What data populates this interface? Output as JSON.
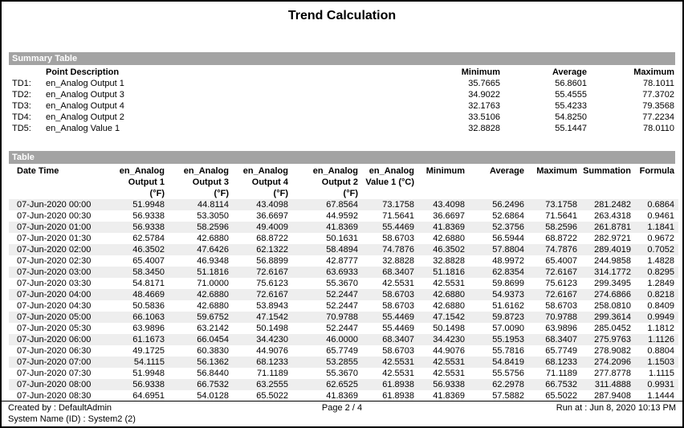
{
  "title": "Trend Calculation",
  "summary": {
    "section_label": "Summary Table",
    "headers": [
      "",
      "Point Description",
      "Minimum",
      "Average",
      "Maximum"
    ],
    "rows": [
      [
        "TD1:",
        "en_Analog Output 1",
        "35.7665",
        "56.8601",
        "78.1011"
      ],
      [
        "TD2:",
        "en_Analog Output 3",
        "34.9022",
        "55.4555",
        "77.3702"
      ],
      [
        "TD3:",
        "en_Analog Output 4",
        "32.1763",
        "55.4233",
        "79.3568"
      ],
      [
        "TD4:",
        "en_Analog Output 2",
        "33.5106",
        "54.8250",
        "77.2234"
      ],
      [
        "TD5:",
        "en_Analog Value 1",
        "32.8828",
        "55.1447",
        "78.0110"
      ]
    ]
  },
  "table": {
    "section_label": "Table",
    "headers": [
      "Date Time",
      "en_Analog\nOutput 1\n(°F)",
      "en_Analog\nOutput 3\n(°F)",
      "en_Analog\nOutput 4\n(°F)",
      "en_Analog\nOutput 2\n(°F)",
      "en_Analog\nValue 1 (°C)",
      "Minimum",
      "Average",
      "Maximum",
      "Summation",
      "Formula"
    ],
    "rows": [
      [
        "07-Jun-2020 00:00",
        "51.9948",
        "44.8114",
        "43.4098",
        "67.8564",
        "73.1758",
        "43.4098",
        "56.2496",
        "73.1758",
        "281.2482",
        "0.6864"
      ],
      [
        "07-Jun-2020 00:30",
        "56.9338",
        "53.3050",
        "36.6697",
        "44.9592",
        "71.5641",
        "36.6697",
        "52.6864",
        "71.5641",
        "263.4318",
        "0.9461"
      ],
      [
        "07-Jun-2020 01:00",
        "56.9338",
        "58.2596",
        "49.4009",
        "41.8369",
        "55.4469",
        "41.8369",
        "52.3756",
        "58.2596",
        "261.8781",
        "1.1841"
      ],
      [
        "07-Jun-2020 01:30",
        "62.5784",
        "42.6880",
        "68.8722",
        "50.1631",
        "58.6703",
        "42.6880",
        "56.5944",
        "68.8722",
        "282.9721",
        "0.9672"
      ],
      [
        "07-Jun-2020 02:00",
        "46.3502",
        "47.6426",
        "62.1322",
        "58.4894",
        "74.7876",
        "46.3502",
        "57.8804",
        "74.7876",
        "289.4019",
        "0.7052"
      ],
      [
        "07-Jun-2020 02:30",
        "65.4007",
        "46.9348",
        "56.8899",
        "42.8777",
        "32.8828",
        "32.8828",
        "48.9972",
        "65.4007",
        "244.9858",
        "1.4828"
      ],
      [
        "07-Jun-2020 03:00",
        "58.3450",
        "51.1816",
        "72.6167",
        "63.6933",
        "68.3407",
        "51.1816",
        "62.8354",
        "72.6167",
        "314.1772",
        "0.8295"
      ],
      [
        "07-Jun-2020 03:30",
        "54.8171",
        "71.0000",
        "75.6123",
        "55.3670",
        "42.5531",
        "42.5531",
        "59.8699",
        "75.6123",
        "299.3495",
        "1.2849"
      ],
      [
        "07-Jun-2020 04:00",
        "48.4669",
        "42.6880",
        "72.6167",
        "52.2447",
        "58.6703",
        "42.6880",
        "54.9373",
        "72.6167",
        "274.6866",
        "0.8218"
      ],
      [
        "07-Jun-2020 04:30",
        "50.5836",
        "42.6880",
        "53.8943",
        "52.2447",
        "58.6703",
        "42.6880",
        "51.6162",
        "58.6703",
        "258.0810",
        "0.8409"
      ],
      [
        "07-Jun-2020 05:00",
        "66.1063",
        "59.6752",
        "47.1542",
        "70.9788",
        "55.4469",
        "47.1542",
        "59.8723",
        "70.9788",
        "299.3614",
        "0.9949"
      ],
      [
        "07-Jun-2020 05:30",
        "63.9896",
        "63.2142",
        "50.1498",
        "52.2447",
        "55.4469",
        "50.1498",
        "57.0090",
        "63.9896",
        "285.0452",
        "1.1812"
      ],
      [
        "07-Jun-2020 06:00",
        "61.1673",
        "66.0454",
        "34.4230",
        "46.0000",
        "68.3407",
        "34.4230",
        "55.1953",
        "68.3407",
        "275.9763",
        "1.1126"
      ],
      [
        "07-Jun-2020 06:30",
        "49.1725",
        "60.3830",
        "44.9076",
        "65.7749",
        "58.6703",
        "44.9076",
        "55.7816",
        "65.7749",
        "278.9082",
        "0.8804"
      ],
      [
        "07-Jun-2020 07:00",
        "54.1115",
        "56.1362",
        "68.1233",
        "53.2855",
        "42.5531",
        "42.5531",
        "54.8419",
        "68.1233",
        "274.2096",
        "1.1503"
      ],
      [
        "07-Jun-2020 07:30",
        "51.9948",
        "56.8440",
        "71.1189",
        "55.3670",
        "42.5531",
        "42.5531",
        "55.5756",
        "71.1189",
        "277.8778",
        "1.1115"
      ],
      [
        "07-Jun-2020 08:00",
        "56.9338",
        "66.7532",
        "63.2555",
        "62.6525",
        "61.8938",
        "56.9338",
        "62.2978",
        "66.7532",
        "311.4888",
        "0.9931"
      ],
      [
        "07-Jun-2020 08:30",
        "64.6951",
        "54.0128",
        "65.5022",
        "41.8369",
        "61.8938",
        "41.8369",
        "57.5882",
        "65.5022",
        "287.9408",
        "1.1444"
      ]
    ]
  },
  "footer": {
    "created_by": "Created by : DefaultAdmin",
    "system_name": "System Name (ID) : System2 (2)",
    "page": "Page 2 / 4",
    "run_at": "Run at : Jun 8, 2020 10:13 PM"
  },
  "colors": {
    "section_bar": "#a3a3a3",
    "row_stripe": "#eeeeee"
  }
}
